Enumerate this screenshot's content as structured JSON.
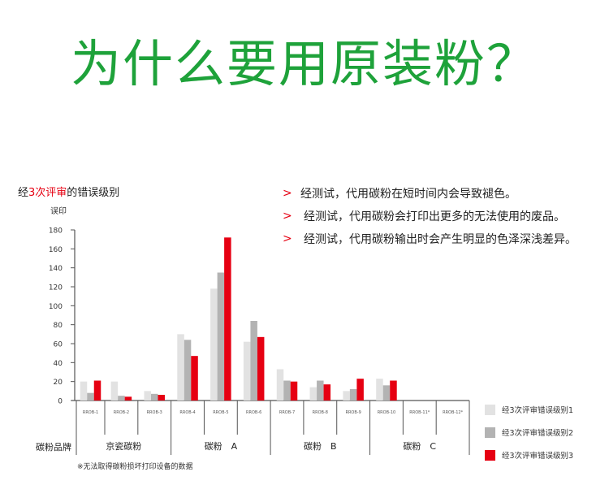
{
  "headline": "为什么要用原装粉？",
  "bullets": [
    "经测试，代用碳粉在短时间内会导致褪色。",
    "经测试，代用碳粉会打印出更多的无法使用的废品。",
    "经测试，代用碳粉输出时会产生明显的色泽深浅差异。"
  ],
  "bullet_icon": "chevron-right-icon",
  "brand_row_label": "碳粉品牌",
  "footnote": "※无法取得碳粉损坏打印设备的数据",
  "colors": {
    "headline": "#1ea23a",
    "accent": "#e60012"
  },
  "chart_data": {
    "type": "bar",
    "title_parts": [
      "经",
      "3次评审",
      "的错误级别"
    ],
    "ylabel": "误印",
    "ylim": [
      0,
      180
    ],
    "yticks": [
      0,
      20,
      40,
      60,
      80,
      100,
      120,
      140,
      160,
      180
    ],
    "categories": [
      "RROB-1",
      "RROB-2",
      "RROB-3",
      "RROB-4",
      "RROB-5",
      "RROB-6",
      "RROB-7",
      "RROB-8",
      "RROB-9",
      "RROB-10",
      "RROB-11*",
      "RROB-12*"
    ],
    "groups": [
      {
        "label": "京瓷碳粉",
        "span": 3
      },
      {
        "label": "碳粉　A",
        "span": 3
      },
      {
        "label": "碳粉　B",
        "span": 3
      },
      {
        "label": "碳粉　C",
        "span": 3
      }
    ],
    "series": [
      {
        "name": "经3次评审错误级别1",
        "color": "#e2e2e2",
        "values": [
          20,
          20,
          10,
          70,
          118,
          62,
          33,
          14,
          10,
          23,
          null,
          null
        ]
      },
      {
        "name": "经3次评审错误级别2",
        "color": "#b3b3b3",
        "values": [
          8,
          5,
          7,
          64,
          135,
          84,
          21,
          21,
          12,
          16,
          null,
          null
        ]
      },
      {
        "name": "经3次评审错误级别3",
        "color": "#e60012",
        "values": [
          21,
          4,
          6,
          47,
          172,
          67,
          20,
          17,
          23,
          21,
          null,
          null
        ]
      }
    ],
    "grid": false,
    "legend": "bottom-right"
  }
}
